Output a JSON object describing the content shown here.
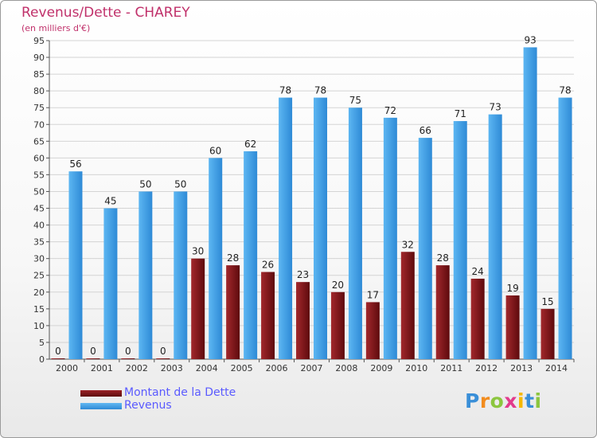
{
  "chart_data": {
    "type": "bar",
    "title": "Revenus/Dette - CHAREY",
    "subtitle": "(en milliers d'€)",
    "categories": [
      "2000",
      "2001",
      "2002",
      "2003",
      "2004",
      "2005",
      "2006",
      "2007",
      "2008",
      "2009",
      "2010",
      "2011",
      "2012",
      "2013",
      "2014"
    ],
    "series": [
      {
        "name": "Montant de la Dette",
        "color": "#7a1518",
        "values": [
          0,
          0,
          0,
          0,
          30,
          28,
          26,
          23,
          20,
          17,
          32,
          28,
          24,
          19,
          15
        ]
      },
      {
        "name": "Revenus",
        "color": "#3a9ee4",
        "values": [
          56,
          45,
          50,
          50,
          60,
          62,
          78,
          78,
          75,
          72,
          66,
          71,
          73,
          93,
          78
        ]
      }
    ],
    "yticks": [
      0,
      5,
      10,
      15,
      20,
      25,
      30,
      35,
      40,
      45,
      50,
      55,
      60,
      65,
      70,
      75,
      80,
      85,
      90,
      95
    ],
    "ylim": [
      0,
      95
    ],
    "grid": true,
    "legend_position": "bottom-left"
  },
  "brand": {
    "letters": [
      "P",
      "r",
      "o",
      "x",
      "i",
      "t",
      "i"
    ],
    "colors": [
      "#3a8fd8",
      "#f28c1e",
      "#8cc63f",
      "#e23a8c",
      "#f5b800",
      "#3a8fd8",
      "#8cc63f"
    ]
  }
}
